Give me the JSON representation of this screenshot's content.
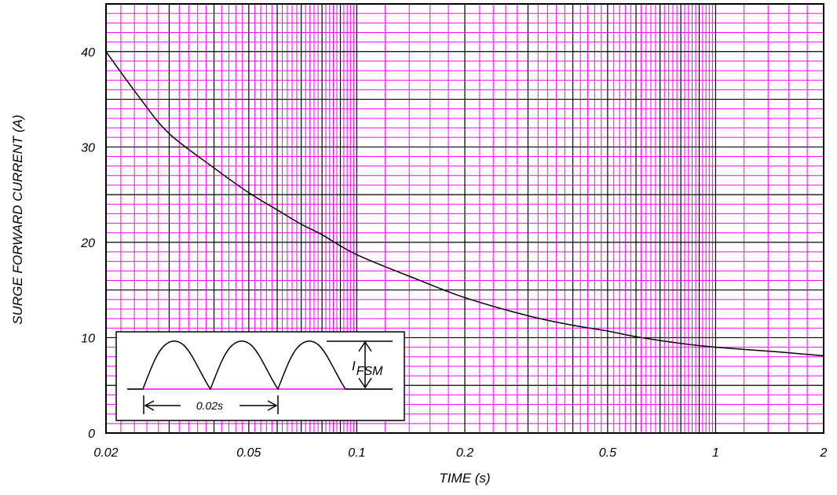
{
  "chart_data": {
    "type": "line",
    "title": "",
    "xlabel": "TIME (s)",
    "ylabel": "SURGE FORWARD CURRENT (A)",
    "x_scale": "log",
    "xlim": [
      0.02,
      2
    ],
    "ylim": [
      0,
      45
    ],
    "grid": true,
    "colors": {
      "grid_minor": "#ff00ff",
      "grid_major": "#000000",
      "curve": "#000000"
    },
    "x_ticks": [
      {
        "value": 0.02,
        "label": "0.02"
      },
      {
        "value": 0.05,
        "label": "0.05"
      },
      {
        "value": 0.1,
        "label": "0.1"
      },
      {
        "value": 0.2,
        "label": "0.2"
      },
      {
        "value": 0.5,
        "label": "0.5"
      },
      {
        "value": 1,
        "label": "1"
      },
      {
        "value": 2,
        "label": "2"
      }
    ],
    "y_ticks": [
      {
        "value": 0,
        "label": "0"
      },
      {
        "value": 10,
        "label": "10"
      },
      {
        "value": 20,
        "label": "20"
      },
      {
        "value": 30,
        "label": "30"
      },
      {
        "value": 40,
        "label": "40"
      }
    ],
    "series": [
      {
        "x": [
          0.02,
          0.025,
          0.03,
          0.04,
          0.05,
          0.06,
          0.07,
          0.08,
          0.1,
          0.15,
          0.2,
          0.3,
          0.4,
          0.5,
          0.6,
          0.8,
          1,
          1.5,
          2
        ],
        "y": [
          40,
          35,
          31.4,
          27.8,
          25.2,
          23.4,
          21.9,
          20.8,
          18.7,
          16.0,
          14.2,
          12.3,
          11.3,
          10.7,
          10.1,
          9.4,
          9.0,
          8.5,
          8.1
        ]
      }
    ],
    "inset": {
      "period_label": "0.02s",
      "current_label_main": "I",
      "current_label_sub": "FSM"
    }
  }
}
